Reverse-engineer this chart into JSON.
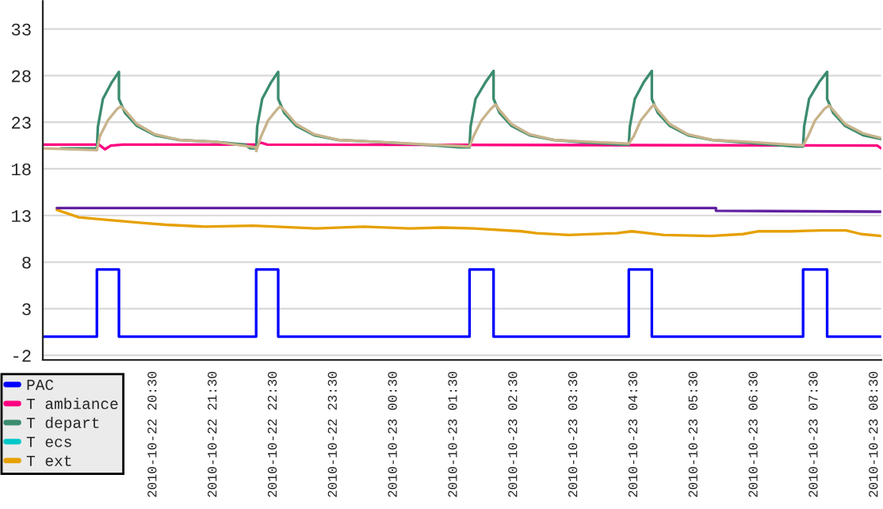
{
  "chart_data": {
    "type": "line",
    "xlim": [
      "2010-10-22T18:40",
      "2010-10-23T08:37"
    ],
    "ylim": [
      -2.5,
      36
    ],
    "xticks": [
      {
        "value": "2010-10-22T20:30",
        "label": "2010-10-22 20:30"
      },
      {
        "value": "2010-10-22T21:30",
        "label": "2010-10-22 21:30"
      },
      {
        "value": "2010-10-22T22:30",
        "label": "2010-10-22 22:30"
      },
      {
        "value": "2010-10-22T23:30",
        "label": "2010-10-22 23:30"
      },
      {
        "value": "2010-10-23T00:30",
        "label": "2010-10-23 00:30"
      },
      {
        "value": "2010-10-23T01:30",
        "label": "2010-10-23 01:30"
      },
      {
        "value": "2010-10-23T02:30",
        "label": "2010-10-23 02:30"
      },
      {
        "value": "2010-10-23T03:30",
        "label": "2010-10-23 03:30"
      },
      {
        "value": "2010-10-23T04:30",
        "label": "2010-10-23 04:30"
      },
      {
        "value": "2010-10-23T05:30",
        "label": "2010-10-23 05:30"
      },
      {
        "value": "2010-10-23T06:30",
        "label": "2010-10-23 06:30"
      },
      {
        "value": "2010-10-23T07:30",
        "label": "2010-10-23 07:30"
      },
      {
        "value": "2010-10-23T08:30",
        "label": "2010-10-23 08:30"
      }
    ],
    "yticks": [
      -2,
      3,
      8,
      13,
      18,
      23,
      28,
      33
    ],
    "grid": "y",
    "legend": "bottom left",
    "series": [
      {
        "name": "PAC",
        "color": "#0000ff",
        "x": [
          "2010-10-22T18:40",
          "2010-10-22T19:34",
          "2010-10-22T19:34",
          "2010-10-22T19:56",
          "2010-10-22T19:56",
          "2010-10-22T22:13",
          "2010-10-22T22:13",
          "2010-10-22T22:35",
          "2010-10-22T22:35",
          "2010-10-23T01:46",
          "2010-10-23T01:46",
          "2010-10-23T02:10",
          "2010-10-23T02:10",
          "2010-10-23T04:25",
          "2010-10-23T04:25",
          "2010-10-23T04:48",
          "2010-10-23T04:48",
          "2010-10-23T07:19",
          "2010-10-23T07:19",
          "2010-10-23T07:43",
          "2010-10-23T07:43",
          "2010-10-23T08:37"
        ],
        "values": [
          0,
          0,
          7.2,
          7.2,
          0,
          0,
          7.2,
          7.2,
          0,
          0,
          7.2,
          7.2,
          0,
          0,
          7.2,
          7.2,
          0,
          0,
          7.2,
          7.2,
          0,
          0
        ]
      },
      {
        "name": "T ambiance",
        "color": "#ff0080",
        "x": [
          "2010-10-22T18:40",
          "2010-10-22T19:36",
          "2010-10-22T19:42",
          "2010-10-22T19:48",
          "2010-10-22T20:00",
          "2010-10-22T22:12",
          "2010-10-22T22:18",
          "2010-10-22T22:24",
          "2010-10-23T08:33",
          "2010-10-23T08:37"
        ],
        "values": [
          20.6,
          20.6,
          20.1,
          20.5,
          20.6,
          20.6,
          20.8,
          20.6,
          20.5,
          20.2
        ]
      },
      {
        "name": "T depart",
        "color": "#3c8c6e",
        "x": [
          "2010-10-22T18:58",
          "2010-10-22T19:34",
          "2010-10-22T19:35",
          "2010-10-22T19:40",
          "2010-10-22T19:49",
          "2010-10-22T19:56",
          "2010-10-22T19:56",
          "2010-10-22T20:02",
          "2010-10-22T20:14",
          "2010-10-22T20:32",
          "2010-10-22T20:56",
          "2010-10-22T21:32",
          "2010-10-22T22:02",
          "2010-10-22T22:07",
          "2010-10-22T22:13",
          "2010-10-22T22:14",
          "2010-10-22T22:19",
          "2010-10-22T22:28",
          "2010-10-22T22:35",
          "2010-10-22T22:35",
          "2010-10-22T22:41",
          "2010-10-22T22:53",
          "2010-10-22T23:11",
          "2010-10-22T23:35",
          "2010-10-23T00:11",
          "2010-10-23T01:00",
          "2010-10-23T01:36",
          "2010-10-23T01:46",
          "2010-10-23T01:47",
          "2010-10-23T01:52",
          "2010-10-23T02:02",
          "2010-10-23T02:10",
          "2010-10-23T02:10",
          "2010-10-23T02:16",
          "2010-10-23T02:28",
          "2010-10-23T02:46",
          "2010-10-23T03:10",
          "2010-10-23T03:46",
          "2010-10-23T04:18",
          "2010-10-23T04:25",
          "2010-10-23T04:26",
          "2010-10-23T04:31",
          "2010-10-23T04:40",
          "2010-10-23T04:48",
          "2010-10-23T04:48",
          "2010-10-23T04:54",
          "2010-10-23T05:06",
          "2010-10-23T05:24",
          "2010-10-23T05:48",
          "2010-10-23T06:24",
          "2010-10-23T07:12",
          "2010-10-23T07:19",
          "2010-10-23T07:20",
          "2010-10-23T07:25",
          "2010-10-23T07:35",
          "2010-10-23T07:43",
          "2010-10-23T07:43",
          "2010-10-23T07:49",
          "2010-10-23T08:01",
          "2010-10-23T08:19",
          "2010-10-23T08:37"
        ],
        "values": [
          20.2,
          20.2,
          22.5,
          25.5,
          27.3,
          28.4,
          25.5,
          24.0,
          22.6,
          21.6,
          21.1,
          20.9,
          20.6,
          20.2,
          20.2,
          22.5,
          25.5,
          27.3,
          28.4,
          25.5,
          24.0,
          22.6,
          21.6,
          21.1,
          20.9,
          20.6,
          20.3,
          20.3,
          22.5,
          25.5,
          27.3,
          28.5,
          25.5,
          24.0,
          22.6,
          21.6,
          21.1,
          20.8,
          20.6,
          20.6,
          22.5,
          25.5,
          27.3,
          28.5,
          25.5,
          24.0,
          22.6,
          21.6,
          21.1,
          20.8,
          20.4,
          20.4,
          22.5,
          25.5,
          27.3,
          28.4,
          25.5,
          24.0,
          22.6,
          21.6,
          21.2
        ]
      },
      {
        "name": "T ecs",
        "color": "#00c8c8"
      },
      {
        "name": "T ext",
        "color": "#e6a000",
        "x": [
          "2010-10-22T18:54",
          "2010-10-22T19:16",
          "2010-10-22T19:47",
          "2010-10-22T20:19",
          "2010-10-22T20:43",
          "2010-10-22T21:22",
          "2010-10-22T22:10",
          "2010-10-22T23:13",
          "2010-10-23T00:00",
          "2010-10-23T00:47",
          "2010-10-23T01:19",
          "2010-10-23T01:50",
          "2010-10-23T02:38",
          "2010-10-23T02:53",
          "2010-10-23T03:25",
          "2010-10-23T04:13",
          "2010-10-23T04:28",
          "2010-10-23T05:00",
          "2010-10-23T05:47",
          "2010-10-23T06:19",
          "2010-10-23T06:35",
          "2010-10-23T07:07",
          "2010-10-23T07:38",
          "2010-10-23T08:02",
          "2010-10-23T08:17",
          "2010-10-23T08:37"
        ],
        "values": [
          13.6,
          12.8,
          12.5,
          12.2,
          12.0,
          11.8,
          11.9,
          11.6,
          11.8,
          11.6,
          11.7,
          11.6,
          11.3,
          11.1,
          10.9,
          11.1,
          11.3,
          10.9,
          10.8,
          11.0,
          11.3,
          11.3,
          11.4,
          11.4,
          11.0,
          10.8
        ]
      },
      {
        "color": "#6020a0",
        "x": [
          "2010-10-22T18:54",
          "2010-10-23T05:52",
          "2010-10-23T05:52",
          "2010-10-23T08:37"
        ],
        "values": [
          13.8,
          13.8,
          13.5,
          13.4
        ]
      },
      {
        "color": "#c8b48c",
        "x": [
          "2010-10-22T18:40",
          "2010-10-22T19:34",
          "2010-10-22T19:37",
          "2010-10-22T19:45",
          "2010-10-22T19:54",
          "2010-10-22T19:58",
          "2010-10-22T20:02",
          "2010-10-22T20:14",
          "2010-10-22T20:32",
          "2010-10-22T20:56",
          "2010-10-22T21:32",
          "2010-10-22T22:13",
          "2010-10-22T22:13",
          "2010-10-22T22:18",
          "2010-10-22T22:25",
          "2010-10-22T22:34",
          "2010-10-22T22:37",
          "2010-10-22T22:41",
          "2010-10-22T22:53",
          "2010-10-22T23:11",
          "2010-10-22T23:35",
          "2010-10-23T00:11",
          "2010-10-23T01:46",
          "2010-10-23T01:50",
          "2010-10-23T01:58",
          "2010-10-23T02:07",
          "2010-10-23T02:12",
          "2010-10-23T02:16",
          "2010-10-23T02:28",
          "2010-10-23T02:46",
          "2010-10-23T03:10",
          "2010-10-23T03:46",
          "2010-10-23T04:25",
          "2010-10-23T04:30",
          "2010-10-23T04:37",
          "2010-10-23T04:46",
          "2010-10-23T04:50",
          "2010-10-23T04:54",
          "2010-10-23T05:06",
          "2010-10-23T05:24",
          "2010-10-23T05:48",
          "2010-10-23T06:24",
          "2010-10-23T07:19",
          "2010-10-23T07:24",
          "2010-10-23T07:31",
          "2010-10-23T07:40",
          "2010-10-23T07:45",
          "2010-10-23T07:49",
          "2010-10-23T08:01",
          "2010-10-23T08:19",
          "2010-10-23T08:37"
        ],
        "values": [
          20.2,
          20.0,
          21.5,
          23.2,
          24.4,
          24.7,
          24.3,
          22.8,
          21.7,
          21.1,
          20.9,
          20.3,
          19.9,
          21.5,
          23.2,
          24.4,
          24.7,
          24.3,
          22.8,
          21.7,
          21.1,
          20.9,
          20.4,
          21.5,
          23.2,
          24.4,
          24.9,
          24.3,
          22.8,
          21.7,
          21.1,
          20.9,
          20.7,
          21.5,
          23.2,
          24.4,
          24.9,
          24.3,
          22.8,
          21.7,
          21.1,
          20.9,
          20.5,
          21.5,
          23.2,
          24.4,
          24.8,
          24.3,
          22.8,
          21.8,
          21.3
        ]
      }
    ]
  }
}
